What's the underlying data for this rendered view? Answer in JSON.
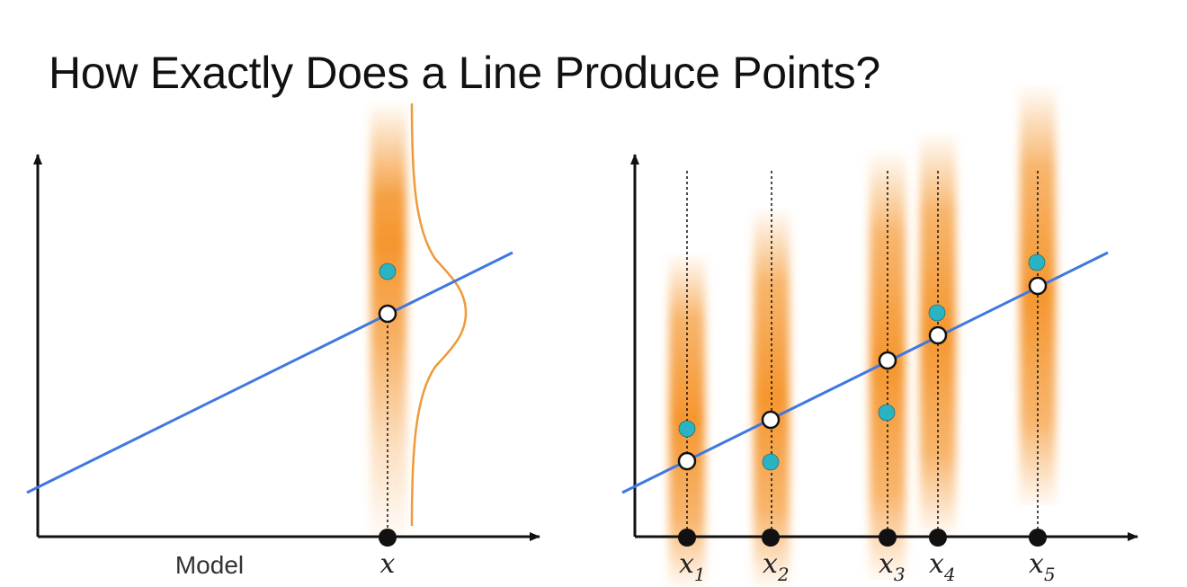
{
  "title": "How Exactly Does a Line Produce Points?",
  "colors": {
    "line": "#3f78e0",
    "band": "#f5962f",
    "observed_point": "#29b3c3",
    "point_edge": "#11606a",
    "axis": "#111111",
    "curve": "#ee9a3a"
  },
  "left_panel": {
    "x_axis_label": "Model",
    "x_label": "x"
  },
  "right_panel": {
    "x_labels": [
      {
        "base": "x",
        "sub": "1"
      },
      {
        "base": "x",
        "sub": "2"
      },
      {
        "base": "x",
        "sub": "3"
      },
      {
        "base": "x",
        "sub": "4"
      },
      {
        "base": "x",
        "sub": "5"
      }
    ]
  }
}
